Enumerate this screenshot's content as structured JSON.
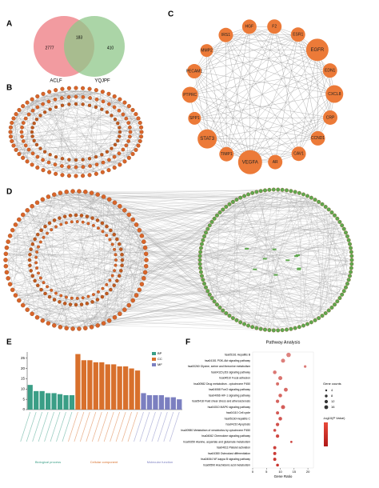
{
  "panels": [
    "A",
    "B",
    "C",
    "D",
    "E",
    "F"
  ],
  "venn": {
    "sets": [
      "ACLF",
      "YQJPF"
    ],
    "counts": [
      2777,
      183,
      410
    ],
    "colors": [
      "#f08a8f",
      "#8fc78a"
    ]
  },
  "network_c": {
    "nodes": [
      "HGF",
      "F2",
      "ESR1",
      "EGFR",
      "EDN1",
      "CXCL8",
      "CRP",
      "CCND1",
      "CAV1",
      "AR",
      "VEGFA",
      "TIMP1",
      "STAT3",
      "SPP1",
      "PTPRC",
      "PECAM1",
      "MMP2",
      "IRS1"
    ]
  },
  "chart_data": [
    {
      "type": "bar",
      "categories": [
        null,
        null,
        null,
        null,
        null,
        null,
        null,
        null,
        null,
        null,
        null,
        null,
        null,
        null,
        null,
        null,
        null,
        null,
        null,
        null,
        null,
        null,
        null,
        null,
        null,
        null
      ],
      "ylim": [
        0,
        28
      ],
      "yticks": [
        0,
        5,
        10,
        15,
        20,
        25
      ],
      "series": [
        {
          "name": "BP",
          "color": "#3a9e86",
          "values": [
            12,
            9,
            9,
            8,
            8,
            7.5,
            7,
            7,
            null,
            null,
            null,
            null,
            null,
            null,
            null,
            null,
            null,
            null,
            null,
            null,
            null,
            null,
            null,
            null,
            null,
            null
          ]
        },
        {
          "name": "CC",
          "color": "#d8702c",
          "values": [
            null,
            null,
            null,
            null,
            null,
            null,
            null,
            null,
            27,
            24,
            24,
            23,
            23,
            22,
            22,
            21,
            21,
            20,
            19,
            null,
            null,
            null,
            null,
            null,
            null,
            null
          ]
        },
        {
          "name": "MF",
          "color": "#7b7fc0",
          "values": [
            null,
            null,
            null,
            null,
            null,
            null,
            null,
            null,
            null,
            null,
            null,
            null,
            null,
            null,
            null,
            null,
            null,
            null,
            null,
            8,
            7,
            7,
            7,
            6,
            6,
            5
          ]
        }
      ],
      "group_labels": [
        "Biological process",
        "Cellular component",
        "Molecular function"
      ]
    },
    {
      "type": "dot",
      "title": "Pathway Analysis",
      "x_label": "Gene Ratio",
      "color": "#c8302a",
      "categories": [
        "hsa05161 Hepatitis B",
        "hsa04151 PI3K-Akt signaling pathway",
        "hsa00260 Glycine, serine and threonine metabolism",
        "hsa04115 p53 signaling pathway",
        "hsa04510 Focal adhesion",
        "hsa00982 Drug metabolism - cytochrome P450",
        "hsa04068 FoxO signaling pathway",
        "hsa04066 HIF-1 signaling pathway",
        "hsa05418 Fluid shear stress and atherosclerosis",
        "hsa04010 MAPK signaling pathway",
        "hsa04110 Cell cycle",
        "hsa05160 Hepatitis C",
        "hsa04210 Apoptosis",
        "hsa00980 Metabolism of xenobiotics by cytochrome P450",
        "hsa04062 Chemokine signaling pathway",
        "hsa00250 Alanine, aspartate and glutamate metabolism",
        "hsa04611 Platelet activation",
        "hsa04380 Osteoclast differentiation",
        "hsa04064 NF-kappa B signaling pathway",
        "hsa00590 Arachidonic acid metabolism"
      ],
      "values": [
        13,
        11,
        19,
        8,
        10,
        9,
        12,
        10,
        9,
        11,
        9,
        10,
        9,
        8,
        9,
        14,
        8,
        8,
        8,
        9
      ],
      "sizes": [
        12,
        10,
        4,
        8,
        10,
        6,
        9,
        8,
        7,
        10,
        6,
        8,
        7,
        5,
        7,
        3,
        6,
        6,
        6,
        5
      ],
      "xlim": [
        0,
        22
      ],
      "xticks": [
        0,
        5,
        10,
        15,
        20
      ],
      "size_legend": {
        "title": "Gene counts",
        "values": [
          4,
          8,
          12,
          16
        ]
      },
      "color_legend": {
        "title": "-log10(P Value)"
      }
    }
  ]
}
